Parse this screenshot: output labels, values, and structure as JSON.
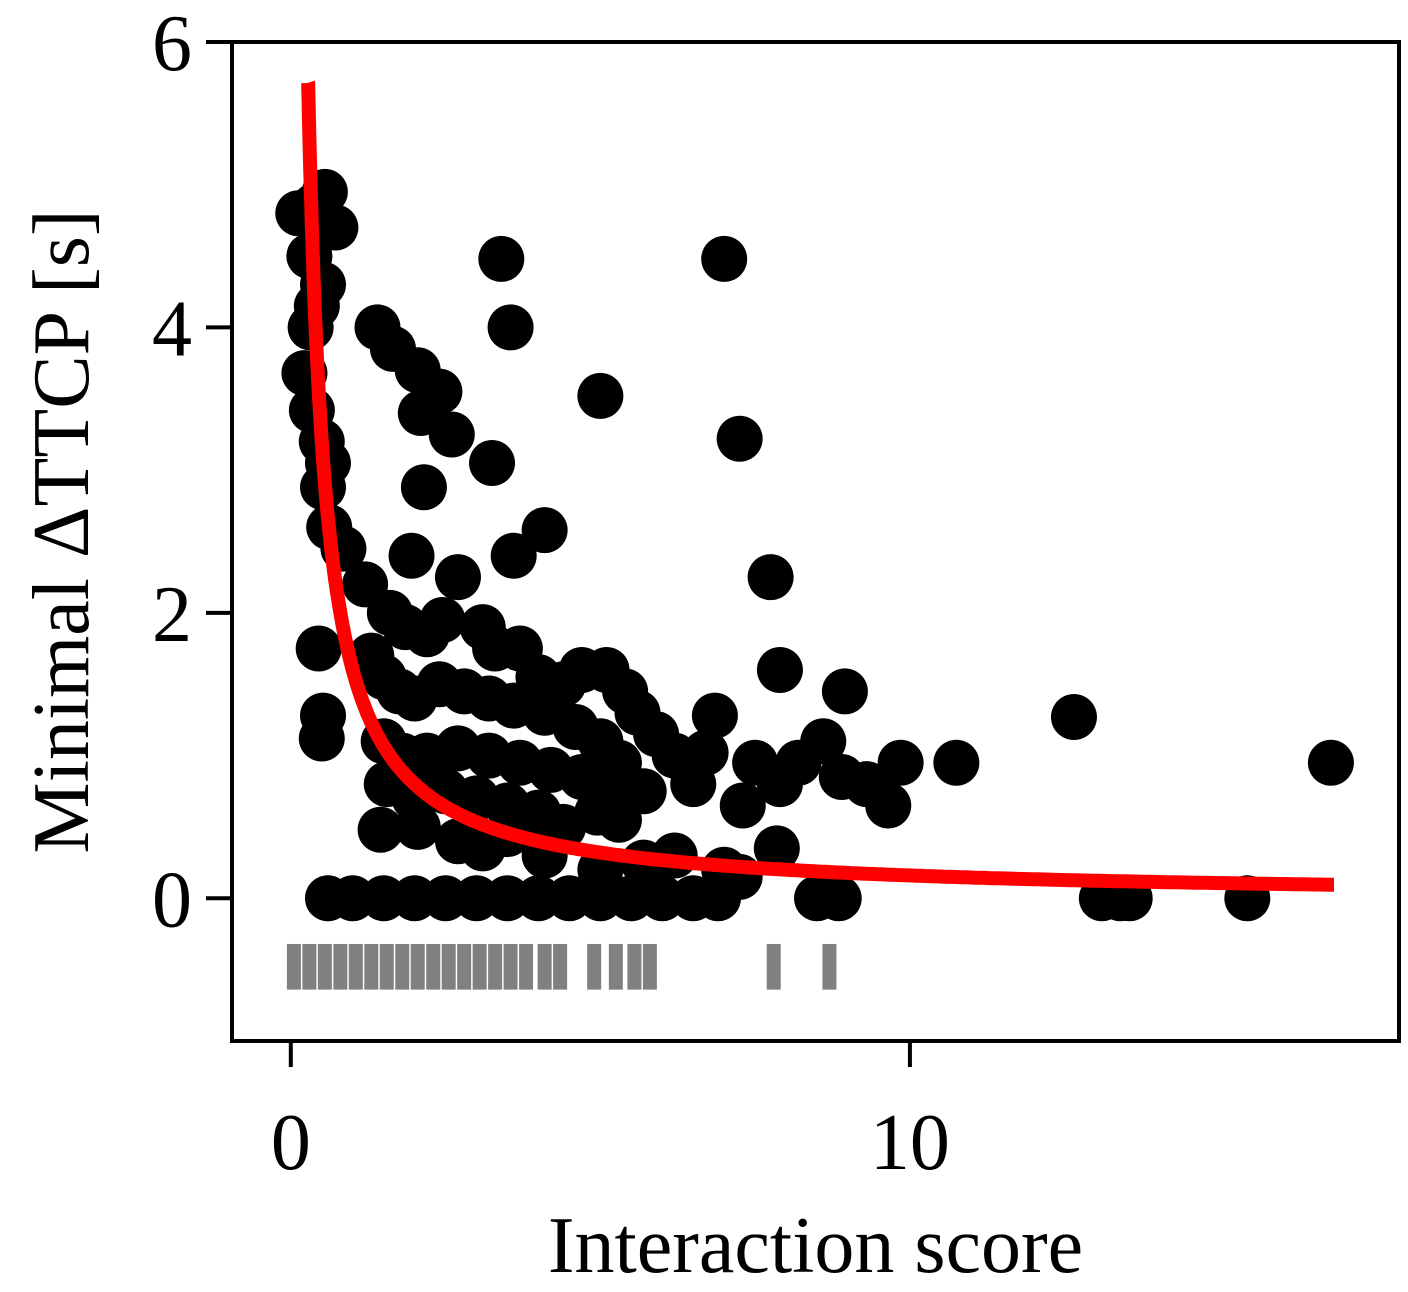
{
  "chart_data": {
    "type": "scatter",
    "xlabel": "Interaction score",
    "ylabel": "Minimal ΔTTCP [s]",
    "xlim": [
      -0.95,
      17.9
    ],
    "ylim": [
      -1.0,
      6.0
    ],
    "x_ticks": [
      0,
      10
    ],
    "y_ticks": [
      0,
      2,
      4,
      6
    ],
    "x_tick_labels": [
      "0",
      "10"
    ],
    "y_tick_labels": [
      "0",
      "2",
      "4",
      "6"
    ],
    "grid": false,
    "legend": "none",
    "colors": {
      "points": "#000000",
      "fit": "#ff0000",
      "rug": "#808080"
    },
    "scatter_points": [
      [
        0.12,
        4.8
      ],
      [
        0.3,
        4.5
      ],
      [
        0.38,
        4.85
      ],
      [
        0.55,
        4.95
      ],
      [
        0.72,
        4.7
      ],
      [
        0.52,
        4.3
      ],
      [
        0.42,
        4.15
      ],
      [
        0.32,
        4.0
      ],
      [
        0.22,
        3.68
      ],
      [
        0.34,
        3.42
      ],
      [
        0.5,
        3.2
      ],
      [
        0.6,
        3.05
      ],
      [
        0.52,
        2.88
      ],
      [
        0.62,
        2.6
      ],
      [
        0.85,
        2.45
      ],
      [
        0.45,
        1.75
      ],
      [
        0.52,
        1.28
      ],
      [
        0.5,
        1.12
      ],
      [
        1.4,
        4.0
      ],
      [
        1.65,
        3.85
      ],
      [
        2.05,
        3.7
      ],
      [
        2.4,
        3.55
      ],
      [
        2.1,
        3.4
      ],
      [
        2.6,
        3.25
      ],
      [
        3.25,
        3.05
      ],
      [
        3.4,
        4.48
      ],
      [
        3.55,
        4.0
      ],
      [
        5.0,
        3.52
      ],
      [
        2.15,
        2.88
      ],
      [
        4.1,
        2.58
      ],
      [
        3.6,
        2.4
      ],
      [
        2.7,
        2.25
      ],
      [
        1.95,
        2.4
      ],
      [
        1.2,
        2.2
      ],
      [
        1.6,
        2.0
      ],
      [
        1.85,
        1.9
      ],
      [
        2.2,
        1.85
      ],
      [
        2.45,
        1.95
      ],
      [
        3.1,
        1.9
      ],
      [
        3.3,
        1.75
      ],
      [
        3.7,
        1.75
      ],
      [
        4.0,
        1.55
      ],
      [
        4.4,
        1.5
      ],
      [
        4.7,
        1.6
      ],
      [
        5.1,
        1.6
      ],
      [
        5.4,
        1.45
      ],
      [
        5.6,
        1.3
      ],
      [
        5.9,
        1.15
      ],
      [
        6.2,
        1.0
      ],
      [
        1.3,
        1.7
      ],
      [
        1.5,
        1.55
      ],
      [
        1.75,
        1.45
      ],
      [
        2.0,
        1.4
      ],
      [
        2.4,
        1.5
      ],
      [
        2.8,
        1.45
      ],
      [
        3.2,
        1.4
      ],
      [
        3.6,
        1.35
      ],
      [
        4.1,
        1.3
      ],
      [
        4.6,
        1.2
      ],
      [
        5.0,
        1.1
      ],
      [
        5.3,
        0.95
      ],
      [
        1.5,
        1.1
      ],
      [
        1.8,
        1.0
      ],
      [
        2.2,
        1.0
      ],
      [
        2.7,
        1.05
      ],
      [
        3.2,
        1.0
      ],
      [
        3.7,
        0.95
      ],
      [
        4.2,
        0.9
      ],
      [
        4.7,
        0.85
      ],
      [
        5.2,
        0.8
      ],
      [
        5.7,
        0.75
      ],
      [
        1.55,
        0.8
      ],
      [
        2.0,
        0.7
      ],
      [
        2.5,
        0.75
      ],
      [
        3.0,
        0.7
      ],
      [
        3.5,
        0.65
      ],
      [
        4.0,
        0.6
      ],
      [
        4.4,
        0.5
      ],
      [
        4.95,
        0.6
      ],
      [
        5.3,
        0.55
      ],
      [
        1.45,
        0.48
      ],
      [
        2.05,
        0.5
      ],
      [
        2.7,
        0.4
      ],
      [
        3.1,
        0.35
      ],
      [
        3.5,
        0.45
      ],
      [
        4.1,
        0.3
      ],
      [
        5.0,
        0.2
      ],
      [
        5.7,
        0.25
      ],
      [
        6.5,
        0.8
      ],
      [
        6.7,
        1.02
      ],
      [
        6.85,
        1.28
      ],
      [
        7.3,
        0.65
      ],
      [
        7.5,
        0.95
      ],
      [
        7.9,
        0.8
      ],
      [
        8.2,
        0.95
      ],
      [
        8.6,
        1.1
      ],
      [
        8.9,
        0.85
      ],
      [
        9.3,
        0.8
      ],
      [
        9.65,
        0.65
      ],
      [
        9.85,
        0.95
      ],
      [
        10.75,
        0.95
      ],
      [
        8.95,
        1.45
      ],
      [
        7.0,
        4.48
      ],
      [
        7.25,
        3.22
      ],
      [
        7.75,
        2.25
      ],
      [
        7.9,
        1.6
      ],
      [
        12.65,
        1.27
      ],
      [
        16.8,
        0.95
      ],
      [
        7.0,
        0.2
      ],
      [
        7.25,
        0.15
      ],
      [
        7.85,
        0.35
      ],
      [
        6.2,
        0.3
      ],
      [
        0.6,
        0
      ],
      [
        1.0,
        0
      ],
      [
        1.5,
        0
      ],
      [
        2.0,
        0
      ],
      [
        2.5,
        0
      ],
      [
        3.0,
        0
      ],
      [
        3.5,
        0
      ],
      [
        4.0,
        0
      ],
      [
        4.5,
        0
      ],
      [
        5.0,
        0
      ],
      [
        5.5,
        0
      ],
      [
        6.0,
        0
      ],
      [
        6.5,
        0
      ],
      [
        6.9,
        0
      ],
      [
        8.5,
        0
      ],
      [
        8.85,
        0
      ],
      [
        13.1,
        0
      ],
      [
        13.4,
        0
      ],
      [
        13.55,
        0
      ],
      [
        15.45,
        0
      ]
    ],
    "fit_curve": {
      "name": "",
      "form": "y = a / x",
      "a": 1.6,
      "x_range": [
        0.28,
        16.85
      ]
    },
    "rug_x": [
      0.05,
      0.3,
      0.55,
      0.8,
      1.05,
      1.3,
      1.55,
      1.8,
      2.05,
      2.3,
      2.55,
      2.8,
      3.05,
      3.3,
      3.55,
      3.8,
      4.1,
      4.35,
      4.9,
      5.25,
      5.55,
      5.8,
      7.8,
      8.7
    ],
    "rug_y_range": [
      -0.32,
      -0.64
    ]
  }
}
